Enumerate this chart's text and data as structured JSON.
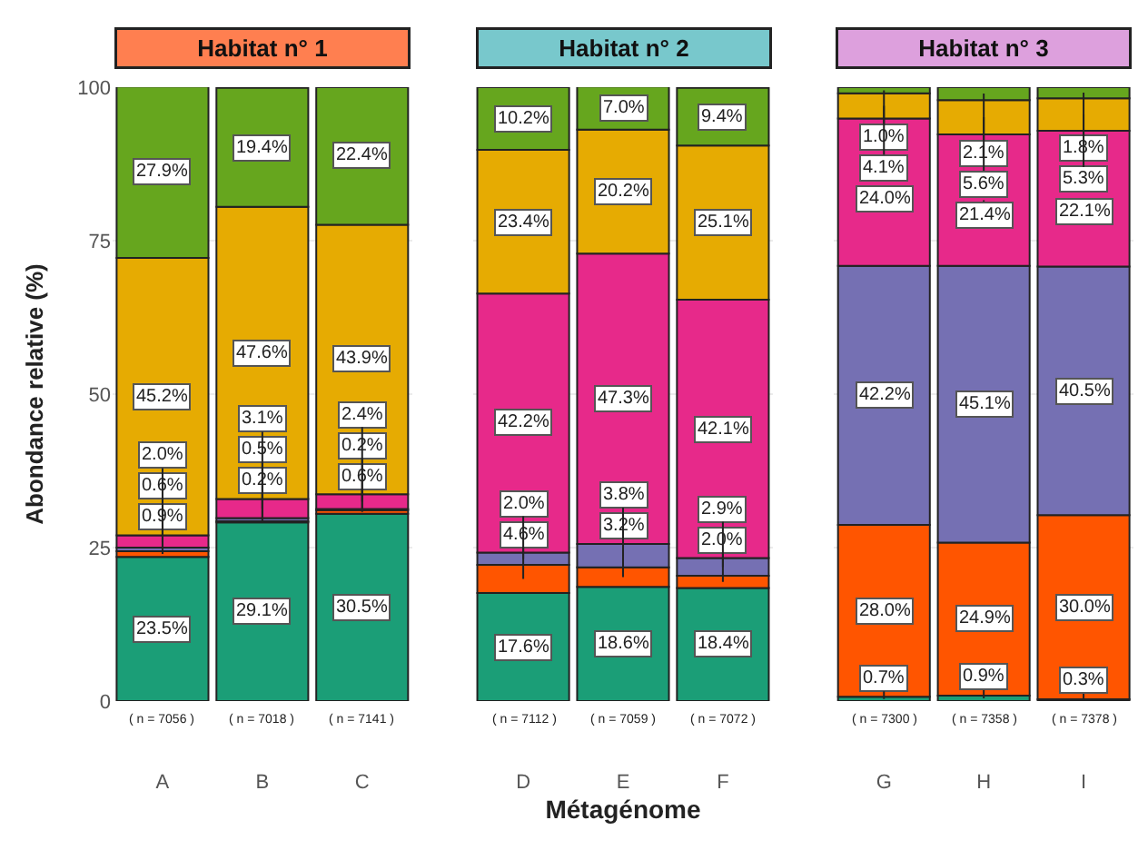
{
  "chart_data": [
    {
      "type": "bar",
      "stacked": true,
      "title": "Habitat n° 1",
      "ylabel": "Abondance relative (%)",
      "categories": [
        "A",
        "B",
        "C"
      ],
      "ylim": [
        0,
        100
      ],
      "yticks": [
        0,
        25,
        50,
        75,
        100
      ],
      "grid": "y",
      "series": [
        {
          "color": "#1b9e77",
          "values": [
            23.5,
            29.1,
            30.5
          ],
          "value_labels": [
            "23.5%",
            "29.1%",
            "30.5%"
          ]
        },
        {
          "color": "#ff5500",
          "values": [
            0.9,
            0.2,
            0.6
          ],
          "value_labels": [
            "0.9%",
            "0.2%",
            "0.6%"
          ]
        },
        {
          "color": "#7570b3",
          "values": [
            0.6,
            0.5,
            0.2
          ],
          "value_labels": [
            "0.6%",
            "0.5%",
            "0.2%"
          ]
        },
        {
          "color": "#e7298a",
          "values": [
            2.0,
            3.1,
            2.4
          ],
          "value_labels": [
            "2.0%",
            "3.1%",
            "2.4%"
          ]
        },
        {
          "color": "#e6ab02",
          "values": [
            45.2,
            47.6,
            43.9
          ],
          "value_labels": [
            "45.2%",
            "47.6%",
            "43.9%"
          ]
        },
        {
          "color": "#66a61e",
          "values": [
            27.9,
            19.4,
            22.4
          ],
          "value_labels": [
            "27.9%",
            "19.4%",
            "22.4%"
          ]
        }
      ],
      "annotations": [
        "( n = 7056 )",
        "( n = 7018 )",
        "( n = 7141 )"
      ]
    },
    {
      "type": "bar",
      "stacked": true,
      "title": "Habitat n° 2",
      "xlabel": "Métagénome",
      "categories": [
        "D",
        "E",
        "F"
      ],
      "ylim": [
        0,
        100
      ],
      "yticks": [
        0,
        25,
        50,
        75,
        100
      ],
      "grid": "y",
      "tick_labels": "x",
      "series": [
        {
          "color": "#1b9e77",
          "values": [
            17.6,
            18.6,
            18.4
          ],
          "value_labels": [
            "17.6%",
            "18.6%",
            "18.4%"
          ]
        },
        {
          "color": "#ff5500",
          "values": [
            4.6,
            3.2,
            2.0
          ],
          "value_labels": [
            "4.6%",
            "3.2%",
            "2.0%"
          ]
        },
        {
          "color": "#7570b3",
          "values": [
            2.0,
            3.8,
            2.9
          ],
          "value_labels": [
            "2.0%",
            "3.8%",
            "2.9%"
          ]
        },
        {
          "color": "#e7298a",
          "values": [
            42.2,
            47.3,
            42.1
          ],
          "value_labels": [
            "42.2%",
            "47.3%",
            "42.1%"
          ]
        },
        {
          "color": "#e6ab02",
          "values": [
            23.4,
            20.2,
            25.1
          ],
          "value_labels": [
            "23.4%",
            "20.2%",
            "25.1%"
          ]
        },
        {
          "color": "#66a61e",
          "values": [
            10.2,
            7.0,
            9.4
          ],
          "value_labels": [
            "10.2%",
            "7.0%",
            "9.4%"
          ]
        }
      ],
      "annotations": [
        "( n = 7112 )",
        "( n = 7059 )",
        "( n = 7072 )"
      ]
    },
    {
      "type": "bar",
      "stacked": true,
      "title": "Habitat n° 3",
      "categories": [
        "G",
        "H",
        "I"
      ],
      "ylim": [
        0,
        100
      ],
      "yticks": [
        0,
        25,
        50,
        75,
        100
      ],
      "grid": "y",
      "tick_labels": "x",
      "series": [
        {
          "color": "#1b9e77",
          "values": [
            0.7,
            0.9,
            0.3
          ],
          "value_labels": [
            "0.7%",
            "0.9%",
            "0.3%"
          ]
        },
        {
          "color": "#ff5500",
          "values": [
            28.0,
            24.9,
            30.0
          ],
          "value_labels": [
            "28.0%",
            "24.9%",
            "30.0%"
          ]
        },
        {
          "color": "#7570b3",
          "values": [
            42.2,
            45.1,
            40.5
          ],
          "value_labels": [
            "42.2%",
            "45.1%",
            "40.5%"
          ]
        },
        {
          "color": "#e7298a",
          "values": [
            24.0,
            21.4,
            22.1
          ],
          "value_labels": [
            "24.0%",
            "21.4%",
            "22.1%"
          ]
        },
        {
          "color": "#e6ab02",
          "values": [
            4.1,
            5.6,
            5.3
          ],
          "value_labels": [
            "4.1%",
            "5.6%",
            "5.3%"
          ]
        },
        {
          "color": "#66a61e",
          "values": [
            1.0,
            2.1,
            1.8
          ],
          "value_labels": [
            "1.0%",
            "2.1%",
            "1.8%"
          ]
        }
      ],
      "annotations": [
        "( n = 7300 )",
        "( n = 7358 )",
        "( n = 7378 )"
      ]
    }
  ]
}
